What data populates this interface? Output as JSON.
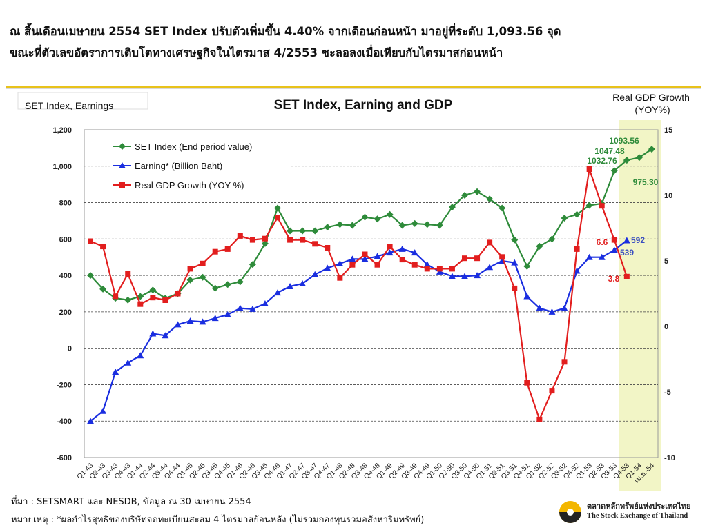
{
  "headline": {
    "line1": "ณ สิ้นเดือนเมษายน 2554 SET Index ปรับตัวเพิ่มขึ้น 4.40% จากเดือนก่อนหน้า มาอยู่ที่ระดับ 1,093.56 จุด",
    "line2": "ขณะที่ตัวเลขอัตราการเติบโตทางเศรษฐกิจในไตรมาส 4/2553 ชะลอลงเมื่อเทียบกับไตรมาสก่อนหน้า"
  },
  "footer": {
    "source": "ที่มา : SETSMART และ NESDB, ข้อมูล ณ 30 เมษายน 2554",
    "note": "หมายเหตุ : *ผลกำไรสุทธิของบริษัทจดทะเบียนสะสม 4 ไตรมาสย้อนหลัง (ไม่รวมกองทุนรวมอสังหาริมทรัพย์)"
  },
  "logo": {
    "thai": "ตลาดหลักทรัพย์แห่งประเทศไทย",
    "english": "The Stock Exchange of Thailand"
  },
  "chart_data": {
    "type": "line",
    "title": "SET Index, Earning and GDP",
    "left_axis_title": "SET Index, Earnings",
    "right_axis_title": [
      "Real GDP Growth",
      "(YOY%)"
    ],
    "y_left": {
      "min": -600,
      "max": 1200,
      "step": 200,
      "ticks": [
        "-600",
        "-400",
        "-200",
        "0",
        "200",
        "400",
        "600",
        "800",
        "1,000",
        "1,200"
      ]
    },
    "y_right": {
      "min": -10,
      "max": 15,
      "step": 5,
      "ticks": [
        "-10",
        "-5",
        "0",
        "5",
        "10",
        "15"
      ]
    },
    "grid": true,
    "legend_position": "top-left",
    "highlight": {
      "from": "Q4-53",
      "to": "เม.ย.-54",
      "color": "#f2f5c6"
    },
    "categories": [
      "Q1-43",
      "Q2-43",
      "Q3-43",
      "Q4-43",
      "Q1-44",
      "Q2-44",
      "Q3-44",
      "Q4-44",
      "Q1-45",
      "Q2-45",
      "Q3-45",
      "Q4-45",
      "Q1-46",
      "Q2-46",
      "Q3-46",
      "Q4-46",
      "Q1-47",
      "Q2-47",
      "Q3-47",
      "Q4-47",
      "Q1-48",
      "Q2-48",
      "Q3-48",
      "Q4-48",
      "Q1-49",
      "Q2-49",
      "Q3-49",
      "Q4-49",
      "Q1-50",
      "Q2-50",
      "Q3-50",
      "Q4-50",
      "Q1-51",
      "Q2-51",
      "Q3-51",
      "Q4-51",
      "Q1-52",
      "Q2-52",
      "Q3-52",
      "Q4-52",
      "Q1-53",
      "Q2-53",
      "Q3-53",
      "Q4-53",
      "Q1-54",
      "เม.ย.-54"
    ],
    "series": [
      {
        "name": "SET Index (End period value)",
        "axis": "left",
        "color": "#2e8b3a",
        "marker": "diamond",
        "values": [
          400,
          325,
          275,
          265,
          285,
          320,
          275,
          300,
          375,
          390,
          330,
          350,
          365,
          460,
          575,
          770,
          645,
          645,
          645,
          665,
          680,
          675,
          720,
          710,
          735,
          675,
          685,
          680,
          675,
          775,
          840,
          860,
          820,
          770,
          595,
          450,
          560,
          600,
          715,
          735,
          785,
          795,
          975.3,
          1032.76,
          1047.48,
          1093.56
        ]
      },
      {
        "name": "Earning* (Billion Baht)",
        "axis": "left",
        "color": "#1a2ee0",
        "marker": "triangle",
        "values": [
          -400,
          -345,
          -130,
          -80,
          -40,
          80,
          70,
          130,
          150,
          145,
          165,
          185,
          220,
          215,
          245,
          305,
          340,
          355,
          405,
          440,
          465,
          490,
          490,
          505,
          525,
          545,
          525,
          460,
          420,
          395,
          395,
          400,
          445,
          480,
          470,
          285,
          220,
          200,
          220,
          425,
          500,
          500,
          539,
          592,
          null,
          null
        ]
      },
      {
        "name": "Real GDP Growth (YOY %)",
        "axis": "right",
        "color": "#e21e1e",
        "marker": "square",
        "values": [
          6.5,
          6.1,
          2.3,
          4.0,
          1.7,
          2.2,
          2.0,
          2.5,
          4.4,
          4.8,
          5.7,
          5.9,
          6.9,
          6.6,
          6.7,
          8.3,
          6.6,
          6.6,
          6.3,
          6.0,
          3.7,
          4.7,
          5.5,
          4.7,
          6.1,
          5.1,
          4.7,
          4.4,
          4.4,
          4.4,
          5.2,
          5.2,
          6.4,
          5.3,
          2.9,
          -4.3,
          -7.1,
          -4.9,
          -2.7,
          5.9,
          12.0,
          9.2,
          6.6,
          3.8,
          null,
          null
        ]
      }
    ],
    "annotations": {
      "set": [
        "975.30",
        "1032.76",
        "1047.48",
        "1093.56"
      ],
      "earning": [
        "539",
        "592"
      ],
      "gdp": [
        "6.6",
        "3.8"
      ]
    }
  }
}
